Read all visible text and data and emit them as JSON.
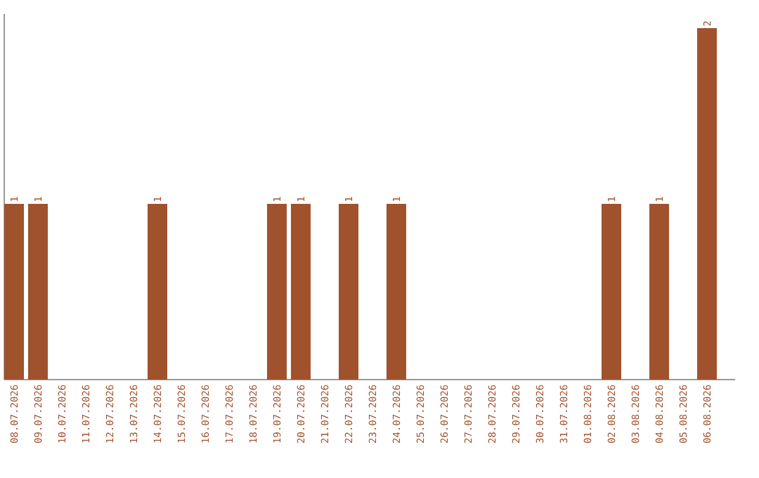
{
  "chart_data": {
    "type": "bar",
    "color": "#a0522d",
    "categories": [
      "08.07.2026",
      "09.07.2026",
      "10.07.2026",
      "11.07.2026",
      "12.07.2026",
      "13.07.2026",
      "14.07.2026",
      "15.07.2026",
      "16.07.2026",
      "17.07.2026",
      "18.07.2026",
      "19.07.2026",
      "20.07.2026",
      "21.07.2026",
      "22.07.2026",
      "23.07.2026",
      "24.07.2026",
      "25.07.2026",
      "26.07.2026",
      "27.07.2026",
      "28.07.2026",
      "29.07.2026",
      "30.07.2026",
      "31.07.2026",
      "01.08.2026",
      "02.08.2026",
      "03.08.2026",
      "04.08.2026",
      "05.08.2026",
      "06.08.2026"
    ],
    "values": [
      1,
      1,
      0,
      0,
      0,
      0,
      1,
      0,
      0,
      0,
      0,
      1,
      1,
      0,
      1,
      0,
      1,
      0,
      0,
      0,
      0,
      0,
      0,
      0,
      0,
      1,
      0,
      1,
      0,
      2
    ],
    "value_labels": [
      "1",
      "1",
      null,
      null,
      null,
      null,
      "1",
      null,
      null,
      null,
      null,
      "1",
      "1",
      null,
      "1",
      null,
      "1",
      null,
      null,
      null,
      null,
      null,
      null,
      null,
      null,
      "1",
      null,
      "1",
      null,
      "2"
    ],
    "tick_labels": "x"
  }
}
